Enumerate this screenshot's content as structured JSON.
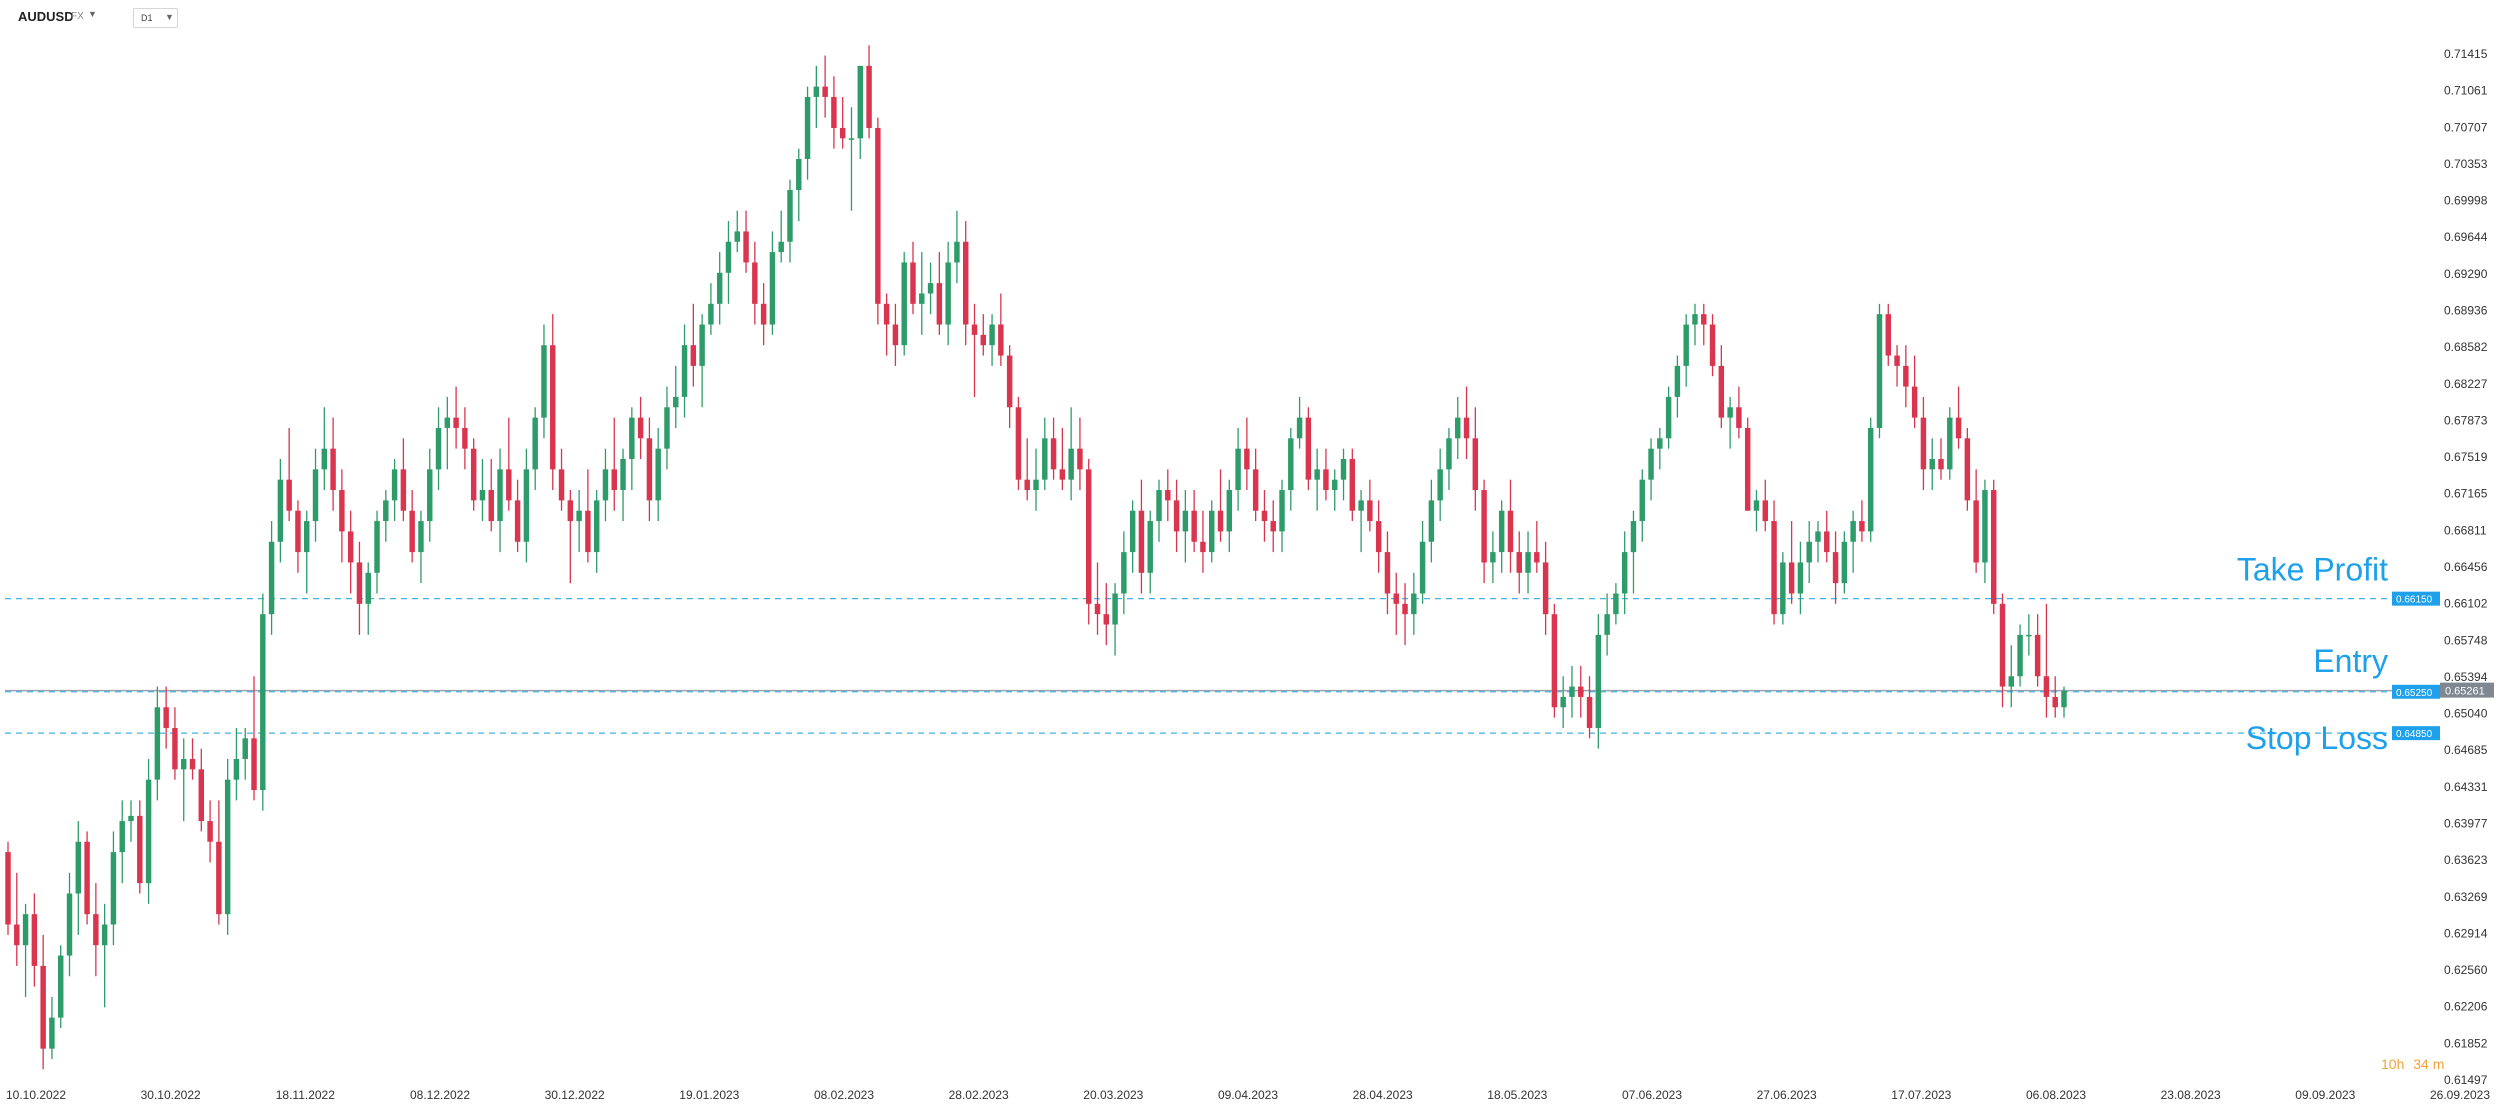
{
  "toolbar": {
    "symbol": "AUDUSD",
    "symbol_suffix": "FX",
    "timeframe": "D1",
    "dropdown_icon": "caret-down-icon"
  },
  "countdown": {
    "hours": "10h",
    "minutes": "34",
    "unit": "m"
  },
  "chart_data": {
    "type": "candlestick",
    "y_ticks": [
      "0.71415",
      "0.71061",
      "0.70707",
      "0.70353",
      "0.69998",
      "0.69644",
      "0.69290",
      "0.68936",
      "0.68582",
      "0.68227",
      "0.67873",
      "0.67519",
      "0.67165",
      "0.66811",
      "0.66456",
      "0.66102",
      "0.65748",
      "0.65394",
      "0.65040",
      "0.64685",
      "0.64331",
      "0.63977",
      "0.63623",
      "0.63269",
      "0.62914",
      "0.62560",
      "0.62206",
      "0.61852",
      "0.61497"
    ],
    "x_ticks": [
      "10.10.2022",
      "30.10.2022",
      "18.11.2022",
      "08.12.2022",
      "30.12.2022",
      "19.01.2023",
      "08.02.2023",
      "28.02.2023",
      "20.03.2023",
      "09.04.2023",
      "28.04.2023",
      "18.05.2023",
      "07.06.2023",
      "27.06.2023",
      "17.07.2023",
      "06.08.2023",
      "23.08.2023",
      "09.09.2023",
      "26.09.2023"
    ],
    "ylim": [
      0.61497,
      0.71415
    ],
    "current_price": "0.65261",
    "levels": [
      {
        "name": "Take Profit",
        "value": 0.6615,
        "label": "0.66150"
      },
      {
        "name": "Entry",
        "value": 0.6525,
        "label": "0.65250"
      },
      {
        "name": "Stop Loss",
        "value": 0.6485,
        "label": "0.64850"
      }
    ],
    "colors": {
      "up": "#2e9c6a",
      "down": "#d9354f",
      "level": "#44b2e2",
      "level_label": "#1ea1ea",
      "current": "#9aa3ad"
    },
    "candles": [
      [
        0.637,
        0.638,
        0.629,
        0.63
      ],
      [
        0.63,
        0.635,
        0.626,
        0.628
      ],
      [
        0.628,
        0.632,
        0.623,
        0.631
      ],
      [
        0.631,
        0.633,
        0.624,
        0.626
      ],
      [
        0.626,
        0.629,
        0.616,
        0.618
      ],
      [
        0.618,
        0.623,
        0.617,
        0.621
      ],
      [
        0.621,
        0.628,
        0.62,
        0.627
      ],
      [
        0.627,
        0.635,
        0.625,
        0.633
      ],
      [
        0.633,
        0.64,
        0.629,
        0.638
      ],
      [
        0.638,
        0.639,
        0.63,
        0.631
      ],
      [
        0.631,
        0.634,
        0.625,
        0.628
      ],
      [
        0.628,
        0.632,
        0.622,
        0.63
      ],
      [
        0.63,
        0.639,
        0.628,
        0.637
      ],
      [
        0.637,
        0.642,
        0.634,
        0.64
      ],
      [
        0.64,
        0.642,
        0.638,
        0.6405
      ],
      [
        0.6405,
        0.642,
        0.633,
        0.634
      ],
      [
        0.634,
        0.646,
        0.632,
        0.644
      ],
      [
        0.644,
        0.653,
        0.642,
        0.651
      ],
      [
        0.651,
        0.653,
        0.647,
        0.649
      ],
      [
        0.649,
        0.651,
        0.644,
        0.645
      ],
      [
        0.645,
        0.648,
        0.64,
        0.646
      ],
      [
        0.646,
        0.648,
        0.644,
        0.645
      ],
      [
        0.645,
        0.647,
        0.639,
        0.64
      ],
      [
        0.64,
        0.642,
        0.636,
        0.638
      ],
      [
        0.638,
        0.642,
        0.63,
        0.631
      ],
      [
        0.631,
        0.646,
        0.629,
        0.644
      ],
      [
        0.644,
        0.649,
        0.642,
        0.646
      ],
      [
        0.646,
        0.649,
        0.644,
        0.648
      ],
      [
        0.648,
        0.654,
        0.642,
        0.643
      ],
      [
        0.643,
        0.662,
        0.641,
        0.66
      ],
      [
        0.66,
        0.669,
        0.658,
        0.667
      ],
      [
        0.667,
        0.675,
        0.665,
        0.673
      ],
      [
        0.673,
        0.678,
        0.669,
        0.67
      ],
      [
        0.67,
        0.671,
        0.664,
        0.666
      ],
      [
        0.666,
        0.67,
        0.662,
        0.669
      ],
      [
        0.669,
        0.676,
        0.667,
        0.674
      ],
      [
        0.674,
        0.68,
        0.672,
        0.676
      ],
      [
        0.676,
        0.679,
        0.67,
        0.672
      ],
      [
        0.672,
        0.674,
        0.665,
        0.668
      ],
      [
        0.668,
        0.67,
        0.662,
        0.665
      ],
      [
        0.665,
        0.667,
        0.658,
        0.661
      ],
      [
        0.661,
        0.665,
        0.658,
        0.664
      ],
      [
        0.664,
        0.67,
        0.662,
        0.669
      ],
      [
        0.669,
        0.672,
        0.667,
        0.671
      ],
      [
        0.671,
        0.675,
        0.669,
        0.674
      ],
      [
        0.674,
        0.677,
        0.669,
        0.67
      ],
      [
        0.67,
        0.672,
        0.665,
        0.666
      ],
      [
        0.666,
        0.67,
        0.663,
        0.669
      ],
      [
        0.669,
        0.676,
        0.667,
        0.674
      ],
      [
        0.674,
        0.68,
        0.672,
        0.678
      ],
      [
        0.678,
        0.681,
        0.674,
        0.679
      ],
      [
        0.679,
        0.682,
        0.676,
        0.678
      ],
      [
        0.678,
        0.68,
        0.674,
        0.676
      ],
      [
        0.676,
        0.677,
        0.67,
        0.671
      ],
      [
        0.671,
        0.675,
        0.669,
        0.672
      ],
      [
        0.672,
        0.675,
        0.668,
        0.669
      ],
      [
        0.669,
        0.676,
        0.666,
        0.674
      ],
      [
        0.674,
        0.679,
        0.67,
        0.671
      ],
      [
        0.671,
        0.673,
        0.666,
        0.667
      ],
      [
        0.667,
        0.676,
        0.665,
        0.674
      ],
      [
        0.674,
        0.68,
        0.672,
        0.679
      ],
      [
        0.679,
        0.688,
        0.677,
        0.686
      ],
      [
        0.686,
        0.689,
        0.672,
        0.674
      ],
      [
        0.674,
        0.676,
        0.67,
        0.671
      ],
      [
        0.671,
        0.672,
        0.663,
        0.669
      ],
      [
        0.669,
        0.672,
        0.666,
        0.67
      ],
      [
        0.67,
        0.674,
        0.665,
        0.666
      ],
      [
        0.666,
        0.672,
        0.664,
        0.671
      ],
      [
        0.671,
        0.676,
        0.669,
        0.674
      ],
      [
        0.674,
        0.679,
        0.67,
        0.672
      ],
      [
        0.672,
        0.676,
        0.669,
        0.675
      ],
      [
        0.675,
        0.68,
        0.672,
        0.679
      ],
      [
        0.679,
        0.681,
        0.675,
        0.677
      ],
      [
        0.677,
        0.679,
        0.669,
        0.671
      ],
      [
        0.671,
        0.678,
        0.669,
        0.676
      ],
      [
        0.676,
        0.682,
        0.674,
        0.68
      ],
      [
        0.68,
        0.684,
        0.678,
        0.681
      ],
      [
        0.681,
        0.688,
        0.679,
        0.686
      ],
      [
        0.686,
        0.69,
        0.682,
        0.684
      ],
      [
        0.684,
        0.689,
        0.68,
        0.688
      ],
      [
        0.688,
        0.692,
        0.687,
        0.69
      ],
      [
        0.69,
        0.695,
        0.688,
        0.693
      ],
      [
        0.693,
        0.698,
        0.69,
        0.696
      ],
      [
        0.696,
        0.699,
        0.695,
        0.697
      ],
      [
        0.697,
        0.699,
        0.693,
        0.694
      ],
      [
        0.694,
        0.696,
        0.688,
        0.69
      ],
      [
        0.69,
        0.692,
        0.686,
        0.688
      ],
      [
        0.688,
        0.697,
        0.687,
        0.695
      ],
      [
        0.695,
        0.699,
        0.694,
        0.696
      ],
      [
        0.696,
        0.702,
        0.694,
        0.701
      ],
      [
        0.701,
        0.705,
        0.698,
        0.704
      ],
      [
        0.704,
        0.711,
        0.702,
        0.71
      ],
      [
        0.71,
        0.713,
        0.707,
        0.711
      ],
      [
        0.711,
        0.714,
        0.708,
        0.71
      ],
      [
        0.71,
        0.712,
        0.705,
        0.707
      ],
      [
        0.707,
        0.71,
        0.705,
        0.706
      ],
      [
        0.706,
        0.709,
        0.699,
        0.706
      ],
      [
        0.706,
        0.713,
        0.704,
        0.713
      ],
      [
        0.713,
        0.715,
        0.706,
        0.707
      ],
      [
        0.707,
        0.708,
        0.688,
        0.69
      ],
      [
        0.69,
        0.691,
        0.685,
        0.688
      ],
      [
        0.688,
        0.69,
        0.684,
        0.686
      ],
      [
        0.686,
        0.695,
        0.685,
        0.694
      ],
      [
        0.694,
        0.696,
        0.689,
        0.69
      ],
      [
        0.69,
        0.695,
        0.687,
        0.691
      ],
      [
        0.691,
        0.694,
        0.689,
        0.692
      ],
      [
        0.692,
        0.695,
        0.687,
        0.688
      ],
      [
        0.688,
        0.696,
        0.686,
        0.694
      ],
      [
        0.694,
        0.699,
        0.692,
        0.696
      ],
      [
        0.696,
        0.698,
        0.686,
        0.688
      ],
      [
        0.688,
        0.69,
        0.681,
        0.687
      ],
      [
        0.687,
        0.689,
        0.685,
        0.686
      ],
      [
        0.686,
        0.689,
        0.684,
        0.688
      ],
      [
        0.688,
        0.691,
        0.684,
        0.685
      ],
      [
        0.685,
        0.686,
        0.678,
        0.68
      ],
      [
        0.68,
        0.681,
        0.672,
        0.673
      ],
      [
        0.673,
        0.677,
        0.671,
        0.672
      ],
      [
        0.672,
        0.676,
        0.67,
        0.673
      ],
      [
        0.673,
        0.679,
        0.672,
        0.677
      ],
      [
        0.677,
        0.679,
        0.673,
        0.674
      ],
      [
        0.674,
        0.678,
        0.672,
        0.673
      ],
      [
        0.673,
        0.68,
        0.671,
        0.676
      ],
      [
        0.676,
        0.679,
        0.672,
        0.674
      ],
      [
        0.674,
        0.675,
        0.659,
        0.661
      ],
      [
        0.661,
        0.665,
        0.658,
        0.66
      ],
      [
        0.66,
        0.663,
        0.657,
        0.659
      ],
      [
        0.659,
        0.663,
        0.656,
        0.662
      ],
      [
        0.662,
        0.668,
        0.66,
        0.666
      ],
      [
        0.666,
        0.671,
        0.664,
        0.67
      ],
      [
        0.67,
        0.673,
        0.662,
        0.664
      ],
      [
        0.664,
        0.67,
        0.662,
        0.669
      ],
      [
        0.669,
        0.673,
        0.667,
        0.672
      ],
      [
        0.672,
        0.674,
        0.669,
        0.671
      ],
      [
        0.671,
        0.673,
        0.666,
        0.668
      ],
      [
        0.668,
        0.672,
        0.665,
        0.67
      ],
      [
        0.67,
        0.672,
        0.666,
        0.667
      ],
      [
        0.667,
        0.67,
        0.664,
        0.666
      ],
      [
        0.666,
        0.671,
        0.665,
        0.67
      ],
      [
        0.67,
        0.674,
        0.667,
        0.668
      ],
      [
        0.668,
        0.673,
        0.666,
        0.672
      ],
      [
        0.672,
        0.678,
        0.67,
        0.676
      ],
      [
        0.676,
        0.679,
        0.672,
        0.674
      ],
      [
        0.674,
        0.676,
        0.669,
        0.67
      ],
      [
        0.67,
        0.672,
        0.667,
        0.669
      ],
      [
        0.669,
        0.671,
        0.666,
        0.668
      ],
      [
        0.668,
        0.673,
        0.666,
        0.672
      ],
      [
        0.672,
        0.678,
        0.67,
        0.677
      ],
      [
        0.677,
        0.681,
        0.676,
        0.679
      ],
      [
        0.679,
        0.68,
        0.672,
        0.673
      ],
      [
        0.673,
        0.676,
        0.67,
        0.674
      ],
      [
        0.674,
        0.676,
        0.671,
        0.672
      ],
      [
        0.672,
        0.674,
        0.67,
        0.673
      ],
      [
        0.673,
        0.676,
        0.671,
        0.675
      ],
      [
        0.675,
        0.676,
        0.669,
        0.67
      ],
      [
        0.67,
        0.672,
        0.666,
        0.671
      ],
      [
        0.671,
        0.673,
        0.668,
        0.669
      ],
      [
        0.669,
        0.671,
        0.664,
        0.666
      ],
      [
        0.666,
        0.668,
        0.66,
        0.662
      ],
      [
        0.662,
        0.664,
        0.658,
        0.661
      ],
      [
        0.661,
        0.663,
        0.657,
        0.66
      ],
      [
        0.66,
        0.664,
        0.658,
        0.662
      ],
      [
        0.662,
        0.669,
        0.661,
        0.667
      ],
      [
        0.667,
        0.673,
        0.665,
        0.671
      ],
      [
        0.671,
        0.676,
        0.669,
        0.674
      ],
      [
        0.674,
        0.678,
        0.672,
        0.677
      ],
      [
        0.677,
        0.681,
        0.675,
        0.679
      ],
      [
        0.679,
        0.682,
        0.675,
        0.677
      ],
      [
        0.677,
        0.68,
        0.67,
        0.672
      ],
      [
        0.672,
        0.673,
        0.663,
        0.665
      ],
      [
        0.665,
        0.668,
        0.663,
        0.666
      ],
      [
        0.666,
        0.671,
        0.664,
        0.67
      ],
      [
        0.67,
        0.673,
        0.664,
        0.666
      ],
      [
        0.666,
        0.668,
        0.662,
        0.664
      ],
      [
        0.664,
        0.668,
        0.662,
        0.666
      ],
      [
        0.666,
        0.669,
        0.664,
        0.665
      ],
      [
        0.665,
        0.667,
        0.658,
        0.66
      ],
      [
        0.66,
        0.661,
        0.65,
        0.651
      ],
      [
        0.651,
        0.654,
        0.649,
        0.652
      ],
      [
        0.652,
        0.655,
        0.65,
        0.653
      ],
      [
        0.653,
        0.655,
        0.65,
        0.652
      ],
      [
        0.652,
        0.654,
        0.648,
        0.649
      ],
      [
        0.649,
        0.66,
        0.647,
        0.658
      ],
      [
        0.658,
        0.662,
        0.656,
        0.66
      ],
      [
        0.66,
        0.663,
        0.659,
        0.662
      ],
      [
        0.662,
        0.668,
        0.66,
        0.666
      ],
      [
        0.666,
        0.67,
        0.662,
        0.669
      ],
      [
        0.669,
        0.674,
        0.667,
        0.673
      ],
      [
        0.673,
        0.677,
        0.671,
        0.676
      ],
      [
        0.676,
        0.678,
        0.674,
        0.677
      ],
      [
        0.677,
        0.682,
        0.676,
        0.681
      ],
      [
        0.681,
        0.685,
        0.679,
        0.684
      ],
      [
        0.684,
        0.689,
        0.682,
        0.688
      ],
      [
        0.688,
        0.69,
        0.686,
        0.689
      ],
      [
        0.689,
        0.69,
        0.686,
        0.688
      ],
      [
        0.688,
        0.689,
        0.683,
        0.684
      ],
      [
        0.684,
        0.686,
        0.678,
        0.679
      ],
      [
        0.679,
        0.681,
        0.676,
        0.68
      ],
      [
        0.68,
        0.682,
        0.677,
        0.678
      ],
      [
        0.678,
        0.679,
        0.67,
        0.67
      ],
      [
        0.67,
        0.672,
        0.668,
        0.671
      ],
      [
        0.671,
        0.673,
        0.668,
        0.669
      ],
      [
        0.669,
        0.671,
        0.659,
        0.66
      ],
      [
        0.66,
        0.666,
        0.659,
        0.665
      ],
      [
        0.665,
        0.669,
        0.661,
        0.662
      ],
      [
        0.662,
        0.667,
        0.66,
        0.665
      ],
      [
        0.665,
        0.669,
        0.663,
        0.667
      ],
      [
        0.667,
        0.669,
        0.665,
        0.668
      ],
      [
        0.668,
        0.67,
        0.665,
        0.666
      ],
      [
        0.666,
        0.668,
        0.661,
        0.663
      ],
      [
        0.663,
        0.668,
        0.662,
        0.667
      ],
      [
        0.667,
        0.67,
        0.664,
        0.669
      ],
      [
        0.669,
        0.671,
        0.667,
        0.668
      ],
      [
        0.668,
        0.679,
        0.667,
        0.678
      ],
      [
        0.678,
        0.69,
        0.677,
        0.689
      ],
      [
        0.689,
        0.69,
        0.684,
        0.685
      ],
      [
        0.685,
        0.686,
        0.682,
        0.684
      ],
      [
        0.684,
        0.686,
        0.68,
        0.682
      ],
      [
        0.682,
        0.685,
        0.678,
        0.679
      ],
      [
        0.679,
        0.681,
        0.672,
        0.674
      ],
      [
        0.674,
        0.677,
        0.672,
        0.675
      ],
      [
        0.675,
        0.677,
        0.673,
        0.674
      ],
      [
        0.674,
        0.68,
        0.673,
        0.679
      ],
      [
        0.679,
        0.682,
        0.676,
        0.677
      ],
      [
        0.677,
        0.678,
        0.67,
        0.671
      ],
      [
        0.671,
        0.674,
        0.664,
        0.665
      ],
      [
        0.665,
        0.673,
        0.663,
        0.672
      ],
      [
        0.672,
        0.673,
        0.66,
        0.661
      ],
      [
        0.661,
        0.662,
        0.651,
        0.653
      ],
      [
        0.653,
        0.657,
        0.651,
        0.654
      ],
      [
        0.654,
        0.659,
        0.653,
        0.658
      ],
      [
        0.658,
        0.66,
        0.656,
        0.658
      ],
      [
        0.658,
        0.66,
        0.653,
        0.654
      ],
      [
        0.654,
        0.661,
        0.65,
        0.652
      ],
      [
        0.652,
        0.654,
        0.65,
        0.651
      ],
      [
        0.651,
        0.653,
        0.65,
        0.6526
      ]
    ]
  }
}
